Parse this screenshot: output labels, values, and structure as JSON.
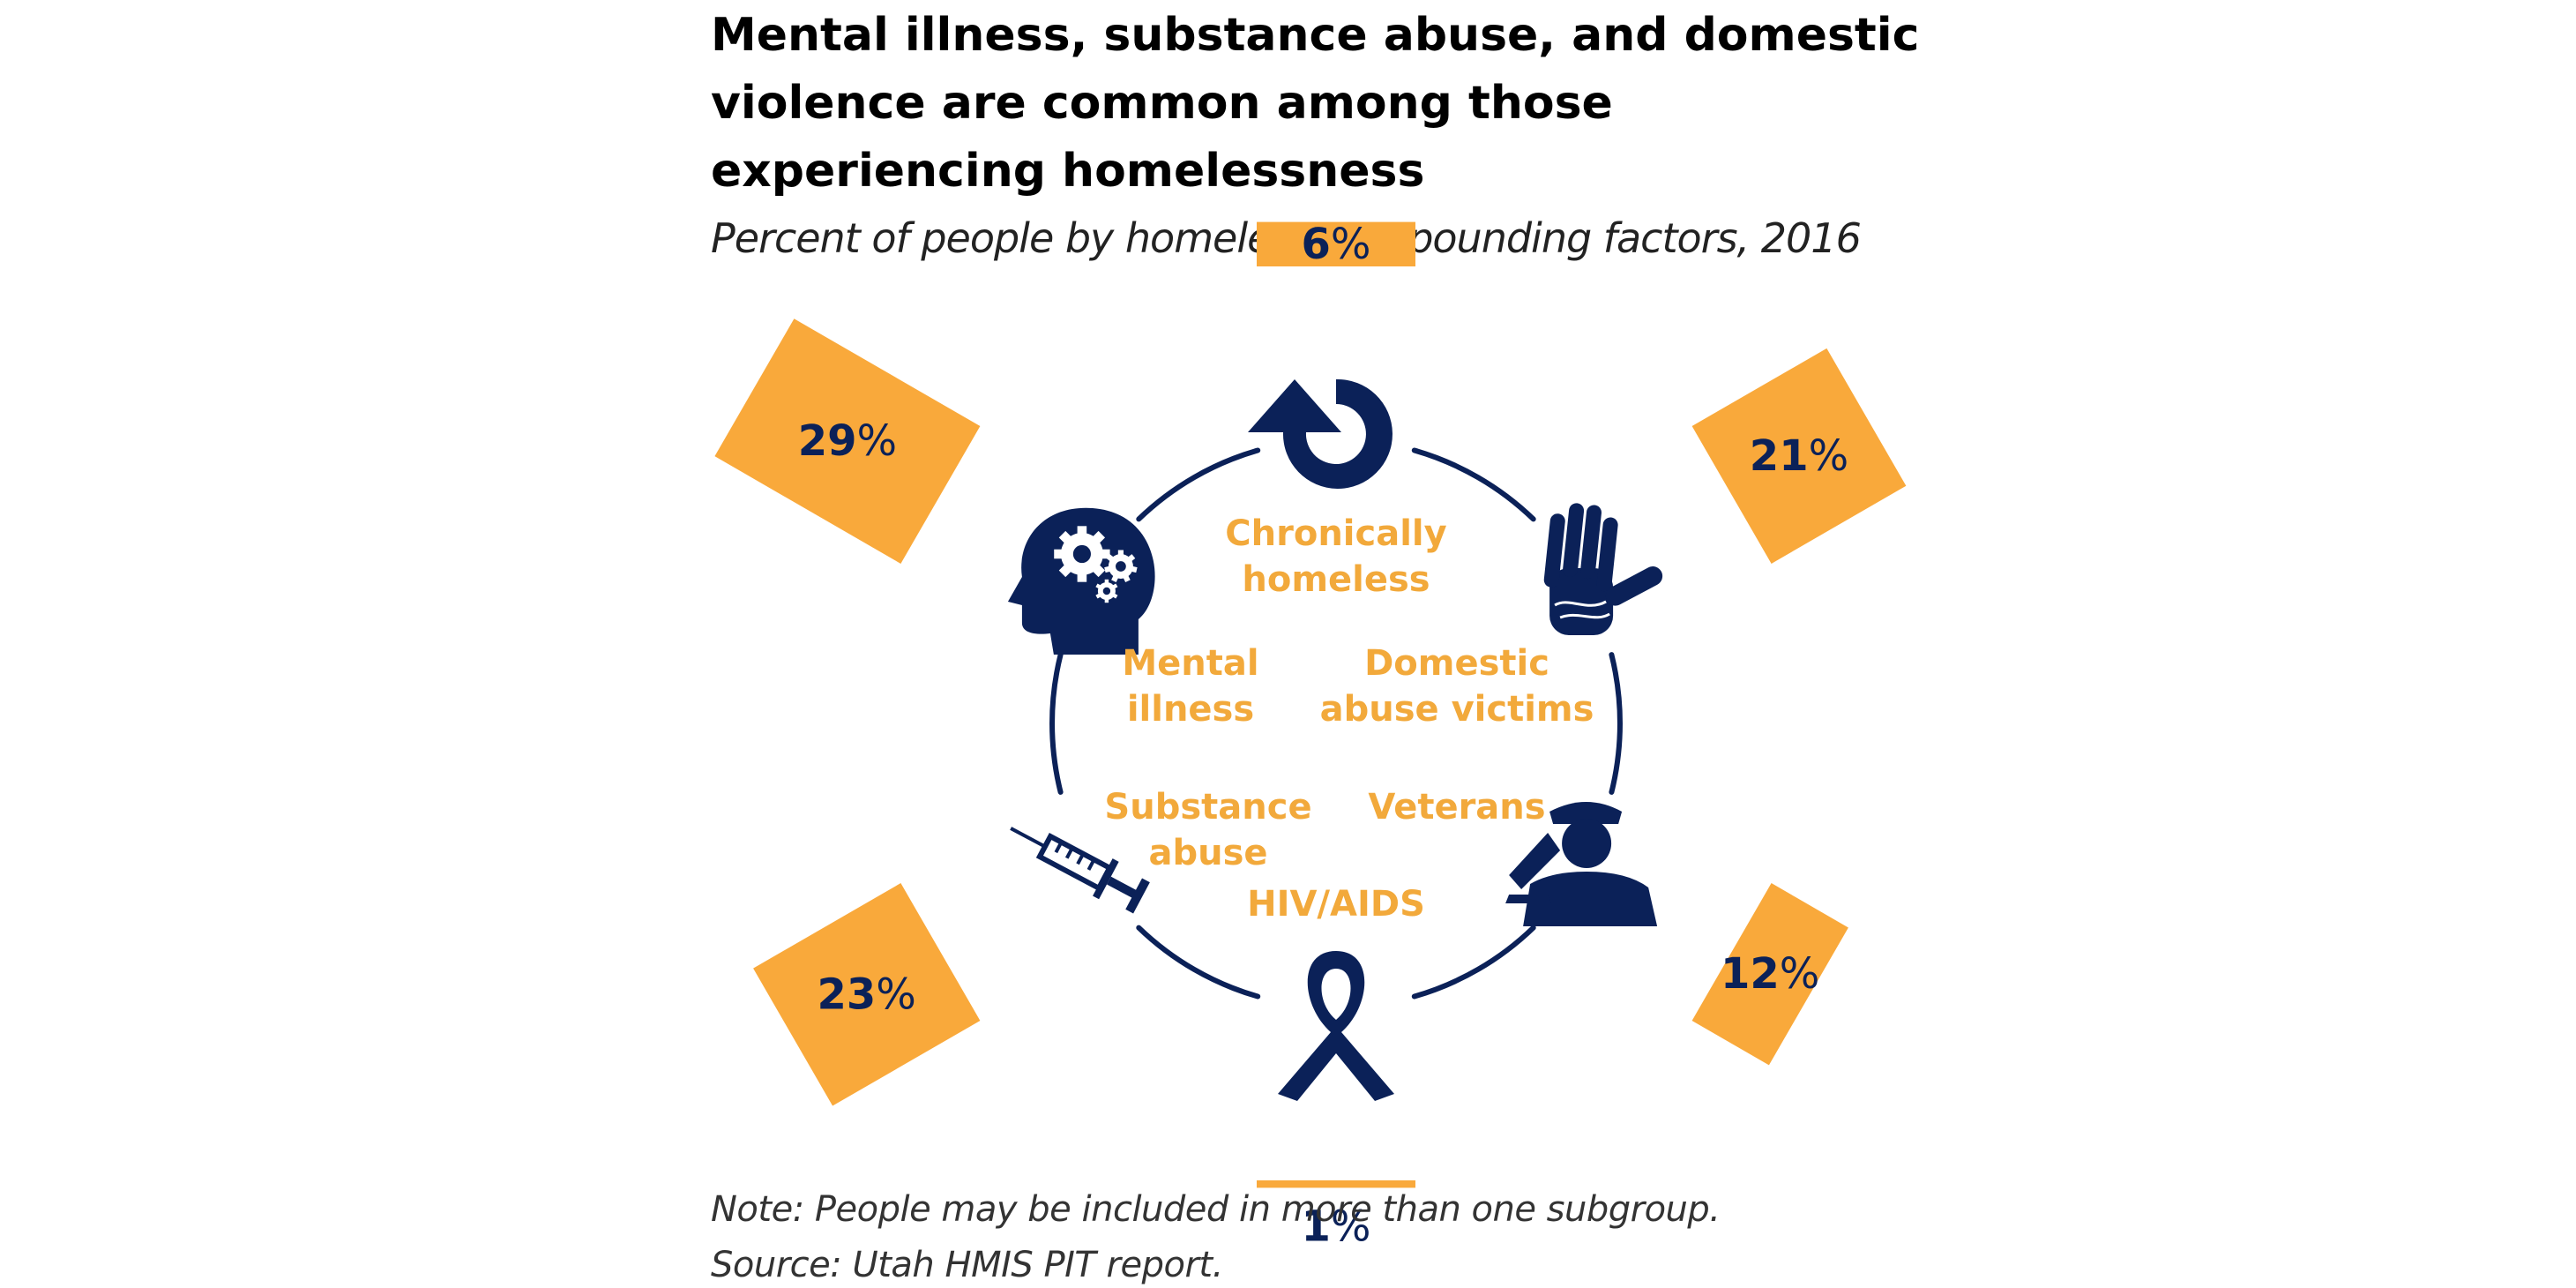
{
  "title": "Mental illness, substance abuse, and domestic\nviolence are common among those\nexperiencing homelessness",
  "subtitle": "Percent of people by homeless compounding factors, 2016",
  "notes": {
    "note": "Note: People may be included in more than one subgroup.",
    "source": "Source: Utah HMIS PIT report."
  },
  "colors": {
    "navy": "#0b2158",
    "orange": "#f9a93b",
    "label_orange": "#f2a93b"
  },
  "chart_data": {
    "type": "bar",
    "title": "Mental illness, substance abuse, and domestic violence are common among those experiencing homelessness",
    "subtitle": "Percent of people by homeless compounding factors, 2016",
    "unit": "%",
    "categories": [
      "Chronically homeless",
      "Domestic abuse victims",
      "Veterans",
      "HIV/AIDS",
      "Substance abuse",
      "Mental illness"
    ],
    "category_lines": [
      [
        "Chronically",
        "homeless"
      ],
      [
        "Domestic",
        "abuse victims"
      ],
      [
        "Veterans"
      ],
      [
        "HIV/AIDS"
      ],
      [
        "Substance",
        "abuse"
      ],
      [
        "Mental",
        "illness"
      ]
    ],
    "values": [
      6,
      21,
      12,
      1,
      23,
      29
    ],
    "icons": [
      "circular-arrow-icon",
      "hand-icon",
      "saluting-soldier-icon",
      "awareness-ribbon-icon",
      "syringe-icon",
      "head-gears-icon"
    ],
    "layout": "radial"
  }
}
